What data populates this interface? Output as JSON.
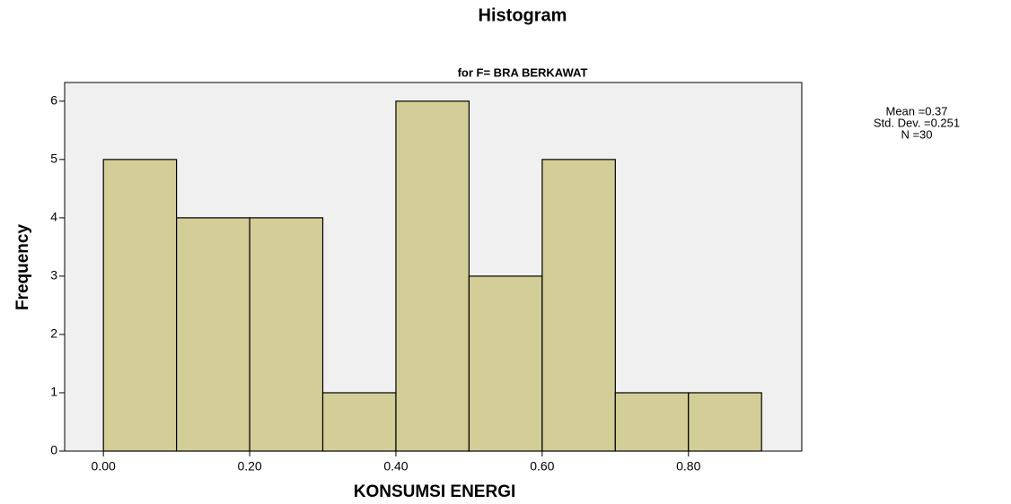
{
  "chart_data": {
    "type": "histogram",
    "title": "Histogram",
    "subtitle": "for F= BRA BERKAWAT",
    "x_label": "KONSUMSI ENERGI",
    "y_label": "Frequency",
    "annotations": [
      "Mean =0.37",
      "Std. Dev. =0.251",
      "N =30"
    ],
    "bins": [
      0,
      0.1,
      0.2,
      0.3,
      0.4,
      0.5,
      0.6,
      0.7,
      0.8,
      0.9
    ],
    "values": [
      5,
      4,
      4,
      1,
      6,
      3,
      5,
      1,
      1
    ],
    "color": "#d3cd97",
    "xlim": [
      -0.053,
      0.955
    ],
    "ylim": [
      0,
      6.32
    ],
    "xticks": [
      {
        "value": 0,
        "label": "0.00"
      },
      {
        "value": 0.2,
        "label": "0.20"
      },
      {
        "value": 0.4,
        "label": "0.40"
      },
      {
        "value": 0.6,
        "label": "0.60"
      },
      {
        "value": 0.8,
        "label": "0.80"
      }
    ],
    "yticks": [
      0,
      1,
      2,
      3,
      4,
      5,
      6
    ]
  }
}
